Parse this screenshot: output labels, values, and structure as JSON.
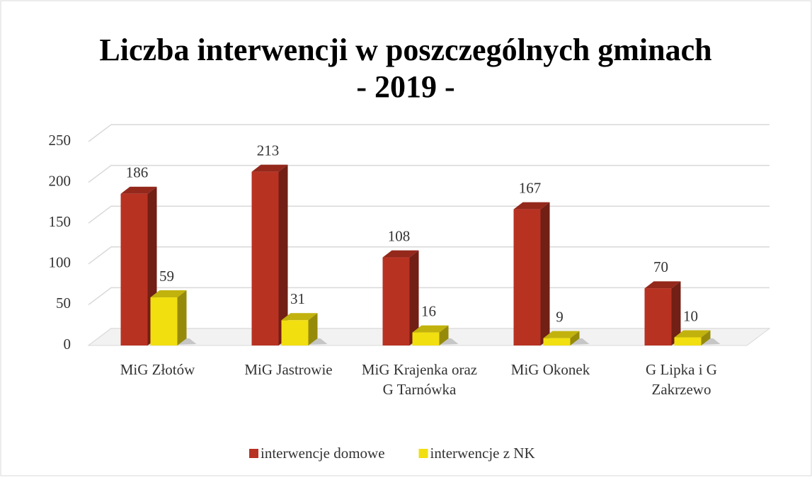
{
  "chart_data": {
    "type": "bar3d",
    "title": "Liczba interwencji w poszczególnych gminach",
    "subtitle": "- 2019 -",
    "categories": [
      "MiG Złotów",
      "MiG Jastrowie",
      "MiG Krajenka oraz G Tarnówka",
      "MiG Okonek",
      "G Lipka i G Zakrzewo"
    ],
    "series": [
      {
        "name": "interwencje domowe",
        "color": "#b83222",
        "values": [
          186,
          213,
          108,
          167,
          70
        ]
      },
      {
        "name": "interwencje z NK",
        "color": "#f2df10",
        "values": [
          59,
          31,
          16,
          9,
          10
        ]
      }
    ],
    "ylim": [
      0,
      250
    ],
    "yticks": [
      0,
      50,
      100,
      150,
      200,
      250
    ],
    "grid": true,
    "legend": "bottom"
  }
}
